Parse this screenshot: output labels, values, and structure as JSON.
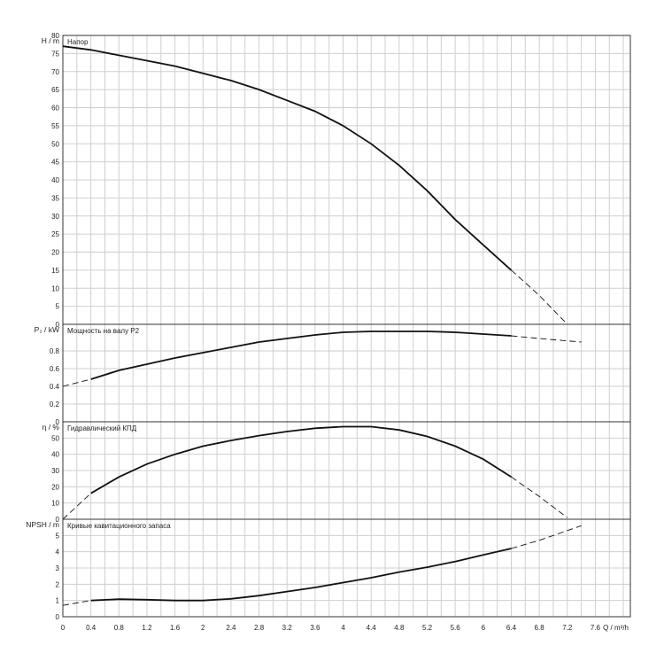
{
  "chart_data": {
    "type": "line",
    "x_axis": {
      "label": "Q / m³/h",
      "ticks": [
        "0",
        "0.4",
        "0.8",
        "1.2",
        "1.6",
        "2",
        "2.4",
        "2.8",
        "3.2",
        "3.6",
        "4",
        "4.4",
        "4.8",
        "5.2",
        "5.6",
        "6",
        "6.4",
        "6.8",
        "7.2",
        "7.6"
      ],
      "range": [
        0,
        8.1
      ]
    },
    "colors": {
      "curve": "#111111",
      "grid": "#cfcfcf",
      "frame": "#333333"
    },
    "panels": [
      {
        "key": "head",
        "ylabel": "H / m",
        "title": "Напор",
        "ylim": [
          0,
          80
        ],
        "yticks": [
          "0",
          "5",
          "10",
          "15",
          "20",
          "25",
          "30",
          "35",
          "40",
          "45",
          "50",
          "55",
          "60",
          "65",
          "70",
          "75",
          "80"
        ],
        "solid": [
          [
            0,
            77
          ],
          [
            0.4,
            76
          ],
          [
            0.8,
            74.5
          ],
          [
            1.2,
            73
          ],
          [
            1.6,
            71.5
          ],
          [
            2,
            69.5
          ],
          [
            2.4,
            67.5
          ],
          [
            2.8,
            65
          ],
          [
            3.2,
            62
          ],
          [
            3.6,
            59
          ],
          [
            4,
            55
          ],
          [
            4.4,
            50
          ],
          [
            4.8,
            44
          ],
          [
            5.2,
            37
          ],
          [
            5.6,
            29
          ],
          [
            6,
            22
          ],
          [
            6.4,
            15
          ]
        ],
        "dashed": [
          [
            6.4,
            15
          ],
          [
            6.8,
            8
          ],
          [
            7.2,
            0
          ]
        ]
      },
      {
        "key": "power",
        "ylabel": "P₂ / kW",
        "title": "Мощность на валу P2",
        "ylim": [
          0,
          1.1
        ],
        "yticks": [
          "0",
          "0.2",
          "0.4",
          "0.6",
          "0.8"
        ],
        "solid": [
          [
            0.4,
            0.48
          ],
          [
            0.8,
            0.58
          ],
          [
            1.2,
            0.65
          ],
          [
            1.6,
            0.72
          ],
          [
            2,
            0.78
          ],
          [
            2.4,
            0.84
          ],
          [
            2.8,
            0.9
          ],
          [
            3.2,
            0.94
          ],
          [
            3.6,
            0.98
          ],
          [
            4,
            1.01
          ],
          [
            4.4,
            1.02
          ],
          [
            4.8,
            1.02
          ],
          [
            5.2,
            1.02
          ],
          [
            5.6,
            1.01
          ],
          [
            6,
            0.99
          ],
          [
            6.4,
            0.97
          ]
        ],
        "dashed": [
          [
            0,
            0.4
          ],
          [
            0.4,
            0.48
          ]
        ],
        "dashed2": [
          [
            6.4,
            0.97
          ],
          [
            6.8,
            0.94
          ],
          [
            7.4,
            0.9
          ]
        ]
      },
      {
        "key": "efficiency",
        "ylabel": "η / %",
        "title": "Гидравлический КПД",
        "ylim": [
          0,
          60
        ],
        "yticks": [
          "0",
          "10",
          "20",
          "30",
          "40",
          "50"
        ],
        "solid": [
          [
            0.4,
            16
          ],
          [
            0.8,
            26
          ],
          [
            1.2,
            34
          ],
          [
            1.6,
            40
          ],
          [
            2,
            45
          ],
          [
            2.4,
            48.5
          ],
          [
            2.8,
            51.5
          ],
          [
            3.2,
            54
          ],
          [
            3.6,
            56
          ],
          [
            4,
            57
          ],
          [
            4.4,
            57
          ],
          [
            4.8,
            55
          ],
          [
            5.2,
            51
          ],
          [
            5.6,
            45
          ],
          [
            6,
            37
          ],
          [
            6.4,
            26
          ]
        ],
        "dashed": [
          [
            0,
            0
          ],
          [
            0.4,
            16
          ]
        ],
        "dashed2": [
          [
            6.4,
            26
          ],
          [
            6.8,
            14
          ],
          [
            7.2,
            1
          ]
        ]
      },
      {
        "key": "npsh",
        "ylabel": "NPSH / m",
        "title": "Кривые кавитационного запаса",
        "ylim": [
          0,
          6
        ],
        "yticks": [
          "0",
          "1",
          "2",
          "3",
          "4",
          "5"
        ],
        "solid": [
          [
            0.4,
            1
          ],
          [
            0.8,
            1.08
          ],
          [
            1.2,
            1.05
          ],
          [
            1.6,
            1
          ],
          [
            2,
            1
          ],
          [
            2.4,
            1.1
          ],
          [
            2.8,
            1.3
          ],
          [
            3.2,
            1.55
          ],
          [
            3.6,
            1.8
          ],
          [
            4,
            2.1
          ],
          [
            4.4,
            2.4
          ],
          [
            4.8,
            2.75
          ],
          [
            5.2,
            3.05
          ],
          [
            5.6,
            3.4
          ],
          [
            6,
            3.8
          ],
          [
            6.4,
            4.2
          ]
        ],
        "dashed": [
          [
            0,
            0.7
          ],
          [
            0.4,
            1
          ]
        ],
        "dashed2": [
          [
            6.4,
            4.2
          ],
          [
            6.8,
            4.7
          ],
          [
            7.4,
            5.6
          ]
        ]
      }
    ]
  }
}
